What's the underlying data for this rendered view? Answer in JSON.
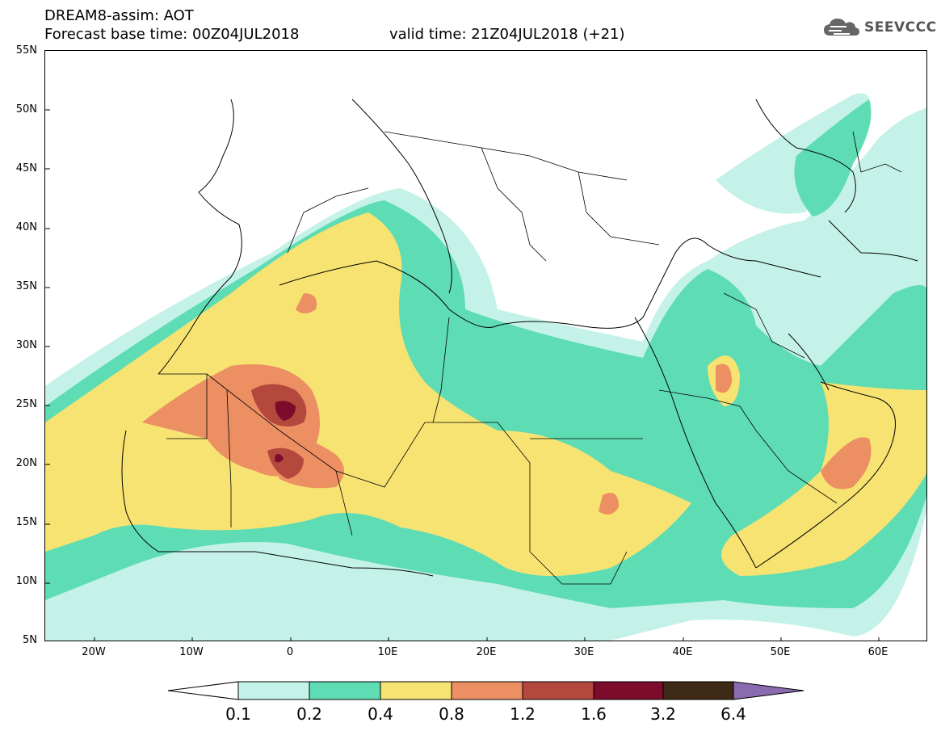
{
  "header": {
    "title": "DREAM8-assim: AOT",
    "base_time": "Forecast base time: 00Z04JUL2018",
    "valid_time": "valid time: 21Z04JUL2018 (+21)",
    "logo_text": "SEEVCCC"
  },
  "map": {
    "lon_range": [
      -25,
      65
    ],
    "lat_range": [
      5,
      55
    ],
    "lat_labels": [
      "55N",
      "50N",
      "45N",
      "40N",
      "35N",
      "30N",
      "25N",
      "20N",
      "15N",
      "10N",
      "5N"
    ],
    "lon_labels": [
      "20W",
      "10W",
      "0",
      "10E",
      "20E",
      "30E",
      "40E",
      "50E",
      "60E"
    ]
  },
  "colorbar": {
    "labels": [
      "0.1",
      "0.2",
      "0.4",
      "0.8",
      "1.2",
      "1.6",
      "3.2",
      "6.4"
    ],
    "colors": [
      "#ffffff",
      "#c5f2e8",
      "#5edcb4",
      "#f7e372",
      "#ec8f62",
      "#b5483d",
      "#7c0b2c",
      "#3f2a17",
      "#8a6bb0"
    ]
  }
}
